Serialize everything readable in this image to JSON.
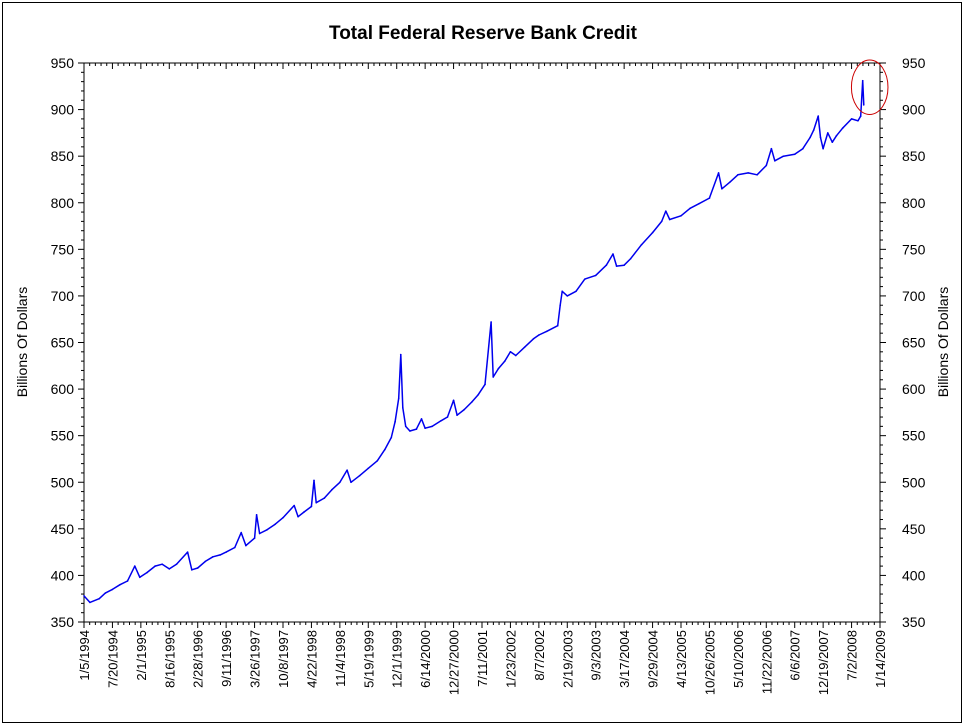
{
  "chart_data": {
    "type": "line",
    "title": "Total Federal Reserve Bank Credit",
    "ylabel": "Billions Of Dollars",
    "ylabel_right": "Billions Of Dollars",
    "ylim": [
      350,
      950
    ],
    "yticks": [
      350,
      400,
      450,
      500,
      550,
      600,
      650,
      700,
      750,
      800,
      850,
      900,
      950
    ],
    "xlim": [
      "1/5/1994",
      "1/14/2009"
    ],
    "x_tick_labels": [
      "1/5/1994",
      "7/20/1994",
      "2/1/1995",
      "8/16/1995",
      "2/28/1996",
      "9/11/1996",
      "3/26/1997",
      "10/8/1997",
      "4/22/1998",
      "11/4/1998",
      "5/19/1999",
      "12/1/1999",
      "6/14/2000",
      "12/27/2000",
      "7/11/2001",
      "1/23/2002",
      "8/7/2002",
      "2/19/2003",
      "9/3/2003",
      "3/17/2004",
      "9/29/2004",
      "4/13/2005",
      "10/26/2005",
      "5/10/2006",
      "11/22/2006",
      "6/6/2007",
      "12/19/2007",
      "7/2/2008",
      "1/14/2009"
    ],
    "grid": false,
    "legend": "none",
    "series": [
      {
        "color": "#0000ee",
        "points": [
          [
            "1/5/1994",
            378
          ],
          [
            "2/15/1994",
            371
          ],
          [
            "4/20/1994",
            375
          ],
          [
            "6/1/1994",
            381
          ],
          [
            "7/20/1994",
            385
          ],
          [
            "9/10/1994",
            390
          ],
          [
            "11/1/1994",
            394
          ],
          [
            "12/21/1994",
            410
          ],
          [
            "1/25/1995",
            398
          ],
          [
            "3/15/1995",
            403
          ],
          [
            "5/10/1995",
            410
          ],
          [
            "6/28/1995",
            412
          ],
          [
            "8/16/1995",
            407
          ],
          [
            "10/5/1995",
            412
          ],
          [
            "12/20/1995",
            425
          ],
          [
            "1/18/1996",
            406
          ],
          [
            "2/28/1996",
            408
          ],
          [
            "4/20/1996",
            415
          ],
          [
            "6/12/1996",
            420
          ],
          [
            "8/1/1996",
            422
          ],
          [
            "9/11/1996",
            425
          ],
          [
            "11/10/1996",
            430
          ],
          [
            "12/24/1996",
            446
          ],
          [
            "1/25/1997",
            432
          ],
          [
            "3/26/1997",
            440
          ],
          [
            "4/9/1997",
            465
          ],
          [
            "4/30/1997",
            445
          ],
          [
            "6/20/1997",
            449
          ],
          [
            "8/15/1997",
            455
          ],
          [
            "10/8/1997",
            462
          ],
          [
            "12/24/1997",
            475
          ],
          [
            "1/20/1998",
            463
          ],
          [
            "3/1/1998",
            468
          ],
          [
            "4/22/1998",
            474
          ],
          [
            "5/10/1998",
            502
          ],
          [
            "5/25/1998",
            478
          ],
          [
            "7/20/1998",
            483
          ],
          [
            "9/10/1998",
            492
          ],
          [
            "11/4/1998",
            500
          ],
          [
            "12/24/1998",
            513
          ],
          [
            "1/20/1999",
            500
          ],
          [
            "3/20/1999",
            507
          ],
          [
            "5/19/1999",
            515
          ],
          [
            "7/20/1999",
            523
          ],
          [
            "9/10/1999",
            535
          ],
          [
            "10/25/1999",
            548
          ],
          [
            "11/20/1999",
            565
          ],
          [
            "12/15/1999",
            590
          ],
          [
            "12/29/1999",
            637
          ],
          [
            "1/12/2000",
            580
          ],
          [
            "2/1/2000",
            560
          ],
          [
            "3/1/2000",
            555
          ],
          [
            "4/15/2000",
            557
          ],
          [
            "5/20/2000",
            568
          ],
          [
            "6/14/2000",
            558
          ],
          [
            "8/1/2000",
            560
          ],
          [
            "10/1/2000",
            566
          ],
          [
            "11/15/2000",
            570
          ],
          [
            "12/27/2000",
            588
          ],
          [
            "1/20/2001",
            572
          ],
          [
            "3/10/2001",
            578
          ],
          [
            "5/1/2001",
            586
          ],
          [
            "6/15/2001",
            594
          ],
          [
            "8/1/2001",
            605
          ],
          [
            "9/12/2001",
            672
          ],
          [
            "9/26/2001",
            613
          ],
          [
            "11/1/2001",
            622
          ],
          [
            "12/15/2001",
            630
          ],
          [
            "1/23/2002",
            640
          ],
          [
            "3/1/2002",
            636
          ],
          [
            "5/1/2002",
            645
          ],
          [
            "7/1/2002",
            654
          ],
          [
            "8/7/2002",
            658
          ],
          [
            "10/1/2002",
            662
          ],
          [
            "12/15/2002",
            668
          ],
          [
            "1/1/2003",
            690
          ],
          [
            "1/15/2003",
            705
          ],
          [
            "2/19/2003",
            700
          ],
          [
            "4/20/2003",
            705
          ],
          [
            "6/20/2003",
            718
          ],
          [
            "9/3/2003",
            722
          ],
          [
            "11/15/2003",
            733
          ],
          [
            "12/31/2003",
            745
          ],
          [
            "1/25/2004",
            732
          ],
          [
            "3/17/2004",
            733
          ],
          [
            "5/1/2004",
            740
          ],
          [
            "7/15/2004",
            755
          ],
          [
            "9/29/2004",
            768
          ],
          [
            "12/1/2004",
            780
          ],
          [
            "12/29/2004",
            791
          ],
          [
            "1/25/2005",
            782
          ],
          [
            "4/13/2005",
            786
          ],
          [
            "6/15/2005",
            794
          ],
          [
            "8/15/2005",
            799
          ],
          [
            "10/26/2005",
            805
          ],
          [
            "12/28/2005",
            832
          ],
          [
            "1/20/2006",
            815
          ],
          [
            "3/15/2006",
            822
          ],
          [
            "5/10/2006",
            830
          ],
          [
            "7/20/2006",
            832
          ],
          [
            "9/20/2006",
            830
          ],
          [
            "11/22/2006",
            840
          ],
          [
            "12/27/2006",
            858
          ],
          [
            "1/20/2007",
            845
          ],
          [
            "3/20/2007",
            850
          ],
          [
            "6/6/2007",
            852
          ],
          [
            "8/1/2007",
            858
          ],
          [
            "9/20/2007",
            870
          ],
          [
            "10/15/2007",
            878
          ],
          [
            "11/15/2007",
            893
          ],
          [
            "12/1/2007",
            870
          ],
          [
            "12/19/2007",
            858
          ],
          [
            "1/20/2008",
            875
          ],
          [
            "2/20/2008",
            865
          ],
          [
            "3/20/2008",
            872
          ],
          [
            "5/1/2008",
            880
          ],
          [
            "7/2/2008",
            890
          ],
          [
            "8/15/2008",
            888
          ],
          [
            "9/3/2008",
            893
          ],
          [
            "9/17/2008",
            931
          ],
          [
            "9/24/2008",
            905
          ]
        ]
      }
    ],
    "annotations": [
      {
        "type": "ellipse",
        "color": "#cc0000",
        "marks_x_range": [
          "7/1/2008",
          "3/10/2009"
        ],
        "marks_y_range": [
          898,
          950
        ]
      }
    ]
  }
}
